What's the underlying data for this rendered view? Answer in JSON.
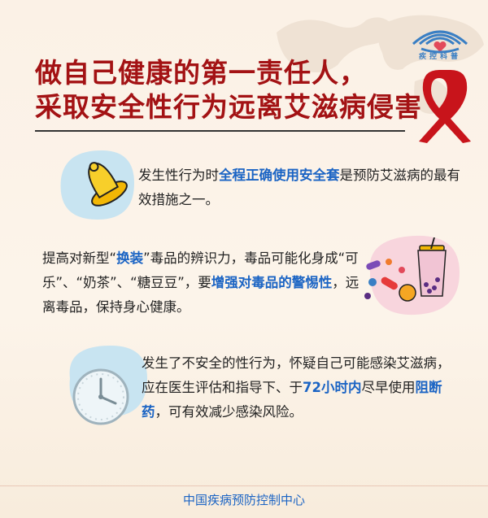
{
  "header": {
    "logo_text": "疾控科普",
    "title_line1": "做自己健康的第一责任人，",
    "title_line2": "采取安全性行为远离艾滋病侵害"
  },
  "items": [
    {
      "icon": "condom-icon",
      "segments": [
        {
          "text": "发生性行为时",
          "hl": false
        },
        {
          "text": "全程正确使用安全套",
          "hl": true
        },
        {
          "text": "是预防艾滋病的最有效措施之一。",
          "hl": false
        }
      ]
    },
    {
      "icon": "drugs-milktea-icon",
      "segments": [
        {
          "text": "提高对新型“",
          "hl": false
        },
        {
          "text": "换装",
          "hl": true
        },
        {
          "text": "”毒品的辨识力，毒品可能化身成“可乐”、“奶茶”、“糖豆豆”，要",
          "hl": false
        },
        {
          "text": "增强对毒品的警惕性",
          "hl": true
        },
        {
          "text": "，远离毒品，保持身心健康。",
          "hl": false
        }
      ]
    },
    {
      "icon": "clock-icon",
      "segments": [
        {
          "text": "发生了不安全的性行为，怀疑自己可能感染艾滋病，应在医生评估和指导下、于",
          "hl": false
        },
        {
          "text": "72小时内",
          "hl": true
        },
        {
          "text": "尽早使用",
          "hl": false
        },
        {
          "text": "阻断药",
          "hl": true
        },
        {
          "text": "，可有效减少感染风险。",
          "hl": false
        }
      ]
    }
  ],
  "footer": {
    "org": "中国疾病预防控制中心"
  },
  "colors": {
    "title": "#a31214",
    "highlight": "#1b64c4",
    "ribbon": "#c8141b"
  }
}
